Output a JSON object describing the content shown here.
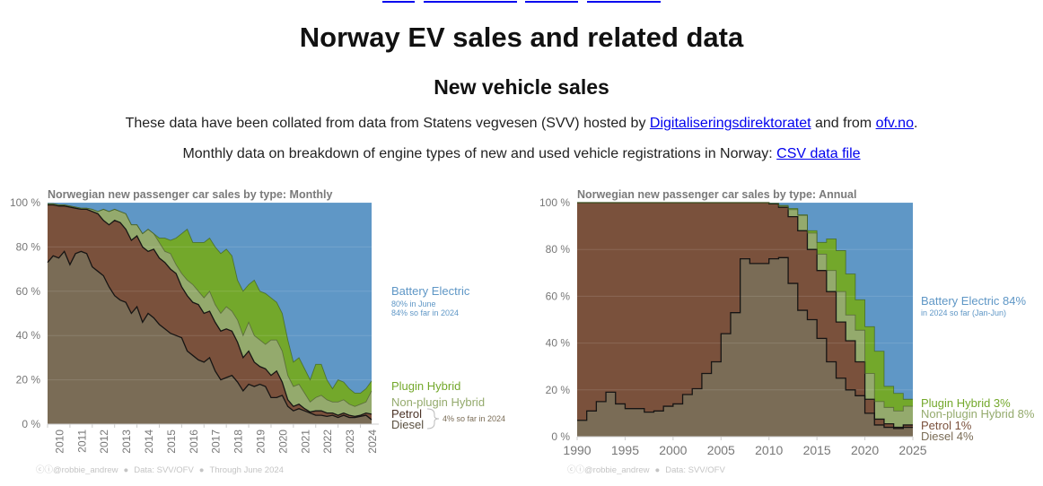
{
  "page": {
    "title": "Norway EV sales and related data",
    "section_title": "New vehicle sales",
    "intro": {
      "before": "These data have been collated from data from Statens vegvesen (SVV) hosted by ",
      "link1": "Digitaliseringsdirektoratet",
      "middle": " and from ",
      "link2": "ofv.no",
      "after": "."
    },
    "monthly_line": {
      "text": "Monthly data on breakdown of engine types of new and used vehicle registrations in Norway: ",
      "link": "CSV data file"
    }
  },
  "colors": {
    "battery_electric": "#5f97c6",
    "plugin_hybrid": "#73a82b",
    "non_plugin_hybrid": "#94aa6d",
    "petrol": "#7a513c",
    "diesel": "#7a6c56",
    "link": "#0000ee"
  },
  "chart_data": [
    {
      "type": "area",
      "stacked": true,
      "title": "Norwegian new passenger car sales by type: Monthly",
      "ylim": [
        0,
        100
      ],
      "y_ticks": [
        "0 %",
        "20 %",
        "40 %",
        "60 %",
        "80 %",
        "100 %"
      ],
      "x_ticks": [
        "2010",
        "2011",
        "2012",
        "2013",
        "2014",
        "2015",
        "2016",
        "2017",
        "2018",
        "2019",
        "2020",
        "2021",
        "2022",
        "2023",
        "2024"
      ],
      "xlim": [
        "2010-01",
        "2024-07"
      ],
      "grid": true,
      "x": [
        "2010-01",
        "2010-04",
        "2010-07",
        "2010-10",
        "2011-01",
        "2011-04",
        "2011-07",
        "2011-10",
        "2012-01",
        "2012-04",
        "2012-07",
        "2012-10",
        "2013-01",
        "2013-04",
        "2013-07",
        "2013-10",
        "2014-01",
        "2014-04",
        "2014-07",
        "2014-10",
        "2015-01",
        "2015-04",
        "2015-07",
        "2015-10",
        "2016-01",
        "2016-04",
        "2016-07",
        "2016-10",
        "2017-01",
        "2017-04",
        "2017-07",
        "2017-10",
        "2018-01",
        "2018-04",
        "2018-07",
        "2018-10",
        "2019-01",
        "2019-04",
        "2019-07",
        "2019-10",
        "2020-01",
        "2020-04",
        "2020-07",
        "2020-10",
        "2021-01",
        "2021-04",
        "2021-07",
        "2021-10",
        "2022-01",
        "2022-04",
        "2022-07",
        "2022-10",
        "2023-01",
        "2023-04",
        "2023-07",
        "2023-10",
        "2024-01",
        "2024-04",
        "2024-07"
      ],
      "series": [
        {
          "name": "Diesel",
          "values": [
            73,
            76,
            75,
            78,
            72,
            77,
            78,
            77,
            71,
            69,
            67,
            62,
            58,
            56,
            55,
            50,
            53,
            46,
            50,
            48,
            45,
            43,
            41,
            40,
            39,
            33,
            31,
            29,
            28,
            30,
            24,
            20,
            21,
            22,
            19,
            15,
            18,
            17,
            18,
            17,
            12,
            12,
            13,
            8,
            6,
            7,
            6,
            5,
            4,
            4,
            3.5,
            4,
            3,
            4,
            3,
            3,
            3.5,
            4,
            2
          ]
        },
        {
          "name": "Petrol",
          "values": [
            26,
            23,
            23.5,
            20.5,
            26,
            20.5,
            19,
            20,
            25,
            26,
            25,
            28,
            34,
            35,
            33,
            33,
            32,
            34,
            28,
            31,
            30,
            30,
            29,
            28,
            23,
            25,
            24,
            25,
            22,
            21,
            22,
            22,
            22,
            20,
            18,
            15,
            15,
            11,
            8,
            8,
            10,
            12,
            6,
            3,
            2,
            2,
            1,
            0.5,
            2,
            2,
            1.5,
            1,
            1,
            1,
            1,
            0.5,
            0.5,
            1,
            2.5
          ]
        },
        {
          "name": "Non-plugin Hybrid",
          "values": [
            0.5,
            0.5,
            0.5,
            0.5,
            0.5,
            0.5,
            0.5,
            0.5,
            1,
            1,
            5,
            6,
            5,
            5,
            7,
            7,
            5,
            6,
            10,
            7,
            7,
            5,
            7,
            4,
            6,
            7,
            8,
            6,
            7,
            9,
            8,
            8,
            10,
            9,
            10,
            10,
            13,
            12,
            12,
            11,
            16,
            14,
            14,
            11,
            9,
            9,
            7,
            4.5,
            6,
            7,
            6,
            5,
            6,
            6,
            5,
            4.5,
            5,
            5,
            10.5
          ]
        },
        {
          "name": "Plugin Hybrid",
          "values": [
            0,
            0,
            0,
            0,
            0,
            0,
            0,
            0,
            0,
            0,
            0,
            0,
            0,
            0,
            0,
            0,
            0,
            0,
            0,
            0,
            2,
            6,
            6,
            12,
            18,
            23,
            19,
            22,
            25,
            24,
            26,
            27,
            26,
            25,
            18,
            20,
            17,
            25,
            22,
            23,
            19,
            17,
            17,
            16,
            11,
            12,
            11,
            10,
            15,
            14,
            9,
            6,
            10,
            8,
            7,
            6,
            5,
            6,
            4.5
          ]
        },
        {
          "name": "Battery Electric",
          "values": [
            0.5,
            0.5,
            1,
            1,
            1.5,
            2,
            2.5,
            2.5,
            3,
            4,
            3,
            4,
            3,
            4,
            5,
            10,
            10,
            14,
            12,
            14,
            16,
            16,
            17,
            16,
            14,
            12,
            18,
            18,
            18,
            16,
            20,
            23,
            21,
            24,
            35,
            40,
            37,
            35,
            40,
            41,
            43,
            45,
            50,
            62,
            72,
            70,
            75,
            80,
            73,
            73,
            80,
            84,
            80,
            81,
            84,
            86,
            86,
            84,
            80
          ]
        }
      ],
      "annotations": {
        "battery_electric": [
          "80% in June",
          "84% so far in 2024"
        ],
        "petrol_diesel": "4% so far in 2024"
      },
      "footer": [
        "@robbie_andrew",
        "Data: SVV/OFV",
        "Through June 2024"
      ]
    },
    {
      "type": "area",
      "stacked": true,
      "step": true,
      "title": "Norwegian new passenger car sales by type: Annual",
      "ylim": [
        0,
        100
      ],
      "xlim": [
        1990,
        2025
      ],
      "y_ticks": [
        "0 %",
        "20 %",
        "40 %",
        "60 %",
        "80 %",
        "100 %"
      ],
      "x_ticks": [
        "1990",
        "1995",
        "2000",
        "2005",
        "2010",
        "2015",
        "2020",
        "2025"
      ],
      "grid": true,
      "x": [
        1990,
        1991,
        1992,
        1993,
        1994,
        1995,
        1996,
        1997,
        1998,
        1999,
        2000,
        2001,
        2002,
        2003,
        2004,
        2005,
        2006,
        2007,
        2008,
        2009,
        2010,
        2011,
        2012,
        2013,
        2014,
        2015,
        2016,
        2017,
        2018,
        2019,
        2020,
        2021,
        2022,
        2023,
        2024
      ],
      "series": [
        {
          "name": "Diesel 4%",
          "values": [
            7,
            11,
            15,
            19,
            14,
            12,
            12,
            10.5,
            11,
            13,
            14,
            18,
            20.5,
            27,
            32,
            44,
            53,
            76,
            74,
            74,
            76,
            76.5,
            65.5,
            54,
            50,
            42,
            32,
            25,
            20,
            17.5,
            10,
            5,
            4,
            3.5,
            4
          ]
        },
        {
          "name": "Petrol 1%",
          "values": [
            93,
            89,
            85,
            81,
            86,
            88,
            88,
            89.5,
            89,
            87,
            86,
            82,
            79.5,
            73,
            68,
            56,
            47,
            24,
            26,
            26,
            23.5,
            21.5,
            28.5,
            34,
            30,
            29,
            30,
            24,
            21,
            14.5,
            6,
            2.5,
            1.5,
            0.5,
            1
          ]
        },
        {
          "name": "Non-plugin Hybrid 8%",
          "values": [
            0,
            0,
            0,
            0,
            0,
            0,
            0,
            0,
            0,
            0,
            0,
            0,
            0,
            0,
            0,
            0,
            0,
            0,
            0,
            0,
            0.2,
            0.5,
            3,
            6.5,
            7,
            7,
            9,
            13,
            11,
            13.5,
            11,
            7.5,
            7,
            7,
            8
          ]
        },
        {
          "name": "Plugin Hybrid 3%",
          "values": [
            0,
            0,
            0,
            0,
            0,
            0,
            0,
            0,
            0,
            0,
            0,
            0,
            0,
            0,
            0,
            0,
            0,
            0,
            0,
            0,
            0,
            0.3,
            0.5,
            0.3,
            1,
            5,
            13.5,
            17.5,
            17.5,
            13,
            20,
            21.5,
            9,
            7.5,
            3
          ]
        },
        {
          "name": "Battery Electric 84%",
          "values": [
            0,
            0,
            0,
            0,
            0,
            0,
            0,
            0,
            0,
            0,
            0,
            0,
            0,
            0,
            0,
            0,
            0,
            0,
            0,
            0,
            0.3,
            1.2,
            2.5,
            5.2,
            12,
            17,
            15.5,
            20.5,
            30.5,
            41.5,
            53,
            63.5,
            78.5,
            81.5,
            84
          ]
        }
      ],
      "annotations": {
        "battery_electric": "in 2024 so far (Jan-Jun)"
      },
      "footer": [
        "@robbie_andrew",
        "Data: SVV/OFV"
      ]
    }
  ]
}
